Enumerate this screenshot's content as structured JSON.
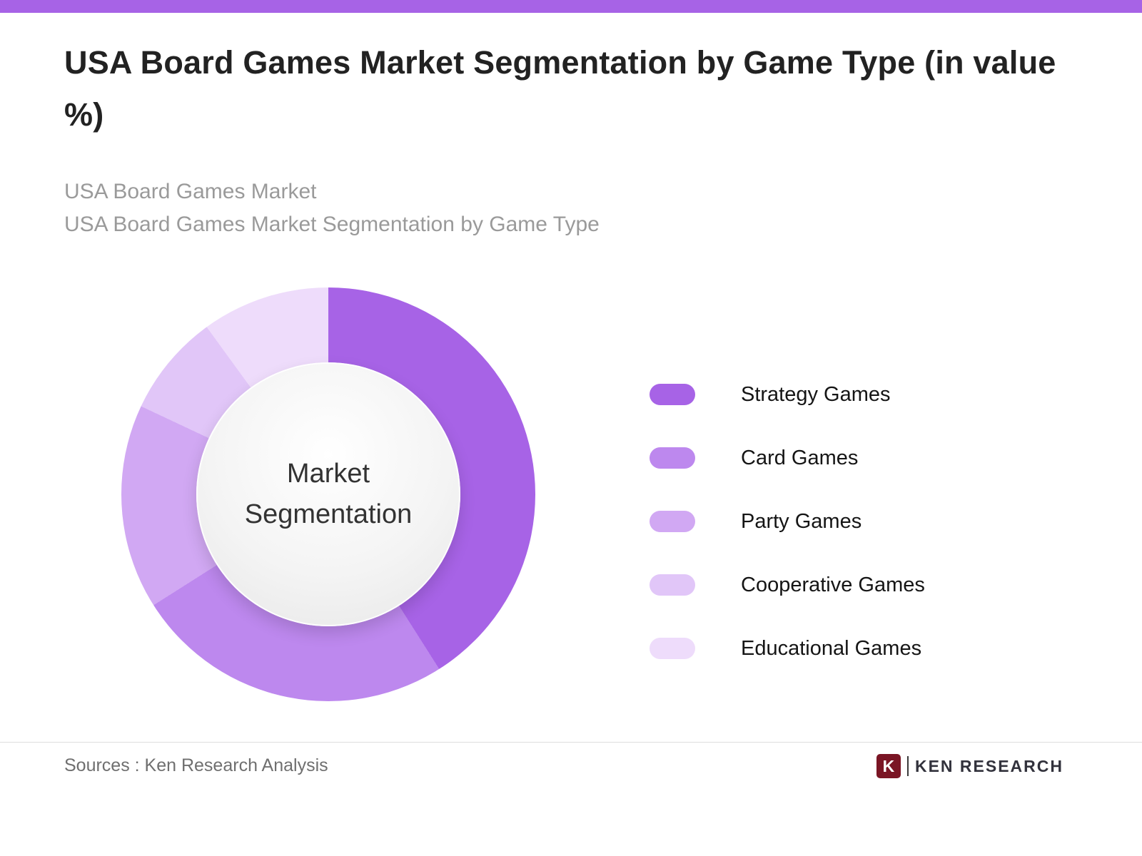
{
  "page": {
    "title": "USA Board Games Market Segmentation by Game Type (in value %)",
    "subtitle_line1": "USA Board Games Market",
    "subtitle_line2": "USA Board Games Market Segmentation by Game Type",
    "accent_color": "#a763e6"
  },
  "chart_data": {
    "type": "pie",
    "variant": "donut",
    "title": "USA Board Games Market Segmentation by Game Type (in value %)",
    "center_label": "Market Segmentation",
    "units": "value %",
    "legend_position": "right",
    "categories": [
      "Strategy Games",
      "Card Games",
      "Party Games",
      "Cooperative Games",
      "Educational Games"
    ],
    "values": [
      41,
      25,
      16,
      8,
      10
    ],
    "colors": [
      "#a763e6",
      "#bd88ee",
      "#d1a8f3",
      "#e1c6f8",
      "#eedcfb"
    ]
  },
  "footer": {
    "source_text": "Sources : Ken Research Analysis",
    "brand_name": "KEN RESEARCH",
    "logo_letter": "K",
    "brand_color": "#7a1524"
  }
}
